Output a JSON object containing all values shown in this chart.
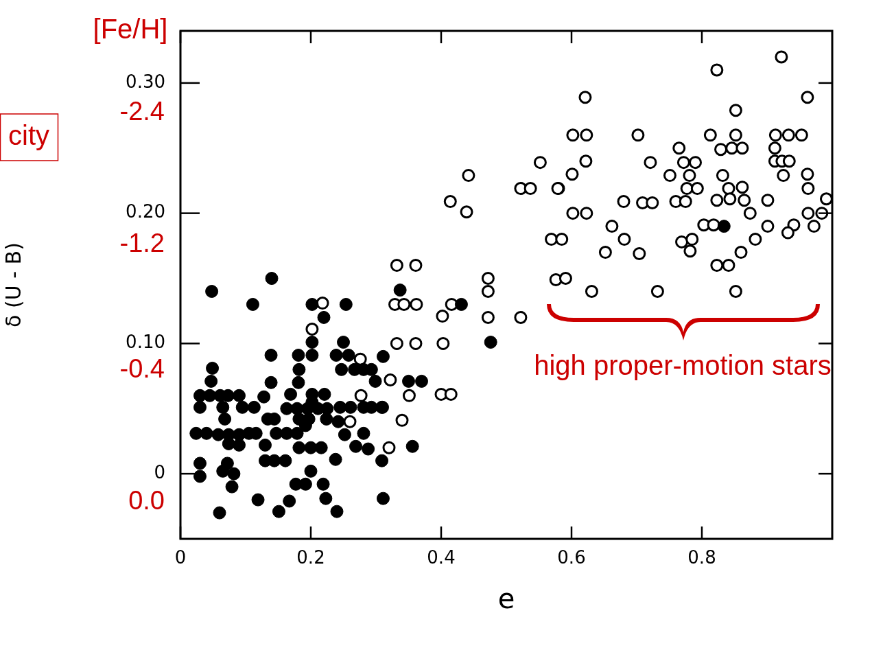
{
  "chart_data": {
    "type": "scatter",
    "xlabel": "e",
    "ylabel": "δ (U - B)",
    "xlim": [
      0,
      1.0
    ],
    "xticks": [
      0,
      0.2,
      0.4,
      0.6,
      0.8
    ],
    "ylim": [
      -0.05,
      0.34
    ],
    "yticks": [
      {
        "value": 0,
        "label": "0"
      },
      {
        "value": 0.1,
        "label": "0.10"
      },
      {
        "value": 0.2,
        "label": "0.20"
      },
      {
        "value": 0.3,
        "label": "0.30"
      }
    ],
    "grid": false,
    "legend": false,
    "marker": "circle",
    "annotations": [
      "[Fe/H]",
      "-2.4",
      "-1.2",
      "-0.4",
      "0.0",
      "city",
      "high proper-motion stars"
    ],
    "series": [
      {
        "color": "#000000",
        "x": [
          0.048,
          0.14,
          0.111,
          0.202,
          0.254,
          0.22,
          0.202,
          0.202,
          0.25,
          0.181,
          0.139,
          0.239,
          0.258,
          0.182,
          0.247,
          0.267,
          0.281,
          0.293,
          0.049,
          0.047,
          0.139,
          0.181,
          0.169,
          0.128,
          0.03,
          0.045,
          0.061,
          0.073,
          0.09,
          0.202,
          0.221,
          0.03,
          0.065,
          0.095,
          0.113,
          0.163,
          0.179,
          0.195,
          0.211,
          0.225,
          0.202,
          0.245,
          0.261,
          0.281,
          0.293,
          0.309,
          0.182,
          0.197,
          0.224,
          0.242,
          0.134,
          0.144,
          0.068,
          0.024,
          0.04,
          0.058,
          0.074,
          0.09,
          0.105,
          0.116,
          0.074,
          0.09,
          0.147,
          0.163,
          0.179,
          0.192,
          0.252,
          0.281,
          0.13,
          0.182,
          0.2,
          0.216,
          0.269,
          0.288,
          0.13,
          0.144,
          0.161,
          0.238,
          0.309,
          0.03,
          0.03,
          0.072,
          0.065,
          0.082,
          0.079,
          0.2,
          0.177,
          0.192,
          0.219,
          0.119,
          0.167,
          0.223,
          0.311,
          0.06,
          0.151,
          0.24,
          0.337,
          0.431,
          0.476,
          0.311,
          0.299,
          0.35,
          0.37,
          0.31,
          0.356,
          0.834
        ],
        "values": [
          0.14,
          0.15,
          0.13,
          0.13,
          0.13,
          0.12,
          0.101,
          0.091,
          0.101,
          0.091,
          0.091,
          0.091,
          0.091,
          0.08,
          0.08,
          0.08,
          0.08,
          0.08,
          0.081,
          0.071,
          0.07,
          0.07,
          0.061,
          0.059,
          0.06,
          0.06,
          0.06,
          0.06,
          0.06,
          0.061,
          0.061,
          0.051,
          0.051,
          0.051,
          0.051,
          0.05,
          0.05,
          0.05,
          0.05,
          0.05,
          0.055,
          0.051,
          0.051,
          0.051,
          0.051,
          0.051,
          0.042,
          0.042,
          0.042,
          0.04,
          0.042,
          0.042,
          0.042,
          0.031,
          0.031,
          0.03,
          0.03,
          0.03,
          0.031,
          0.031,
          0.023,
          0.022,
          0.031,
          0.031,
          0.031,
          0.037,
          0.03,
          0.031,
          0.022,
          0.02,
          0.02,
          0.02,
          0.021,
          0.019,
          0.01,
          0.01,
          0.01,
          0.011,
          0.01,
          0.008,
          -0.002,
          0.008,
          0.002,
          0.0,
          -0.01,
          0.002,
          -0.008,
          -0.008,
          -0.008,
          -0.02,
          -0.021,
          -0.019,
          -0.019,
          -0.03,
          -0.029,
          -0.029,
          0.141,
          0.13,
          0.101,
          0.09,
          0.071,
          0.071,
          0.071,
          0.051,
          0.021,
          0.19
        ]
      },
      {
        "color": "#000000",
        "x": [
          0.922,
          0.823,
          0.621,
          0.962,
          0.852,
          0.602,
          0.623,
          0.702,
          0.813,
          0.852,
          0.913,
          0.933,
          0.953,
          0.765,
          0.829,
          0.846,
          0.862,
          0.912,
          0.552,
          0.622,
          0.721,
          0.772,
          0.79,
          0.912,
          0.923,
          0.934,
          0.601,
          0.751,
          0.781,
          0.832,
          0.925,
          0.962,
          0.58,
          0.777,
          0.793,
          0.841,
          0.862,
          0.963,
          0.68,
          0.709,
          0.724,
          0.76,
          0.775,
          0.823,
          0.843,
          0.865,
          0.901,
          0.991,
          0.874,
          0.963,
          0.984,
          0.602,
          0.623,
          0.662,
          0.803,
          0.818,
          0.901,
          0.941,
          0.932,
          0.972,
          0.569,
          0.585,
          0.681,
          0.769,
          0.785,
          0.882,
          0.652,
          0.704,
          0.782,
          0.86,
          0.823,
          0.841,
          0.576,
          0.591,
          0.631,
          0.732,
          0.852,
          0.442,
          0.522,
          0.537,
          0.579,
          0.414,
          0.439,
          0.332,
          0.361,
          0.472,
          0.472,
          0.329,
          0.343,
          0.362,
          0.416,
          0.402,
          0.472,
          0.522,
          0.332,
          0.361,
          0.403,
          0.322,
          0.351,
          0.4,
          0.415,
          0.34,
          0.32,
          0.218,
          0.202,
          0.276,
          0.277,
          0.26
        ],
        "values": [
          0.32,
          0.31,
          0.289,
          0.289,
          0.279,
          0.26,
          0.26,
          0.26,
          0.26,
          0.26,
          0.26,
          0.26,
          0.26,
          0.25,
          0.249,
          0.25,
          0.25,
          0.25,
          0.239,
          0.24,
          0.239,
          0.239,
          0.239,
          0.24,
          0.24,
          0.24,
          0.23,
          0.229,
          0.229,
          0.229,
          0.229,
          0.23,
          0.219,
          0.219,
          0.219,
          0.219,
          0.22,
          0.219,
          0.209,
          0.208,
          0.208,
          0.209,
          0.209,
          0.21,
          0.211,
          0.21,
          0.21,
          0.211,
          0.2,
          0.2,
          0.2,
          0.2,
          0.2,
          0.19,
          0.191,
          0.191,
          0.19,
          0.191,
          0.185,
          0.19,
          0.18,
          0.18,
          0.18,
          0.178,
          0.18,
          0.18,
          0.17,
          0.169,
          0.171,
          0.17,
          0.16,
          0.16,
          0.149,
          0.15,
          0.14,
          0.14,
          0.14,
          0.229,
          0.219,
          0.219,
          0.219,
          0.209,
          0.201,
          0.16,
          0.16,
          0.15,
          0.14,
          0.13,
          0.13,
          0.13,
          0.13,
          0.121,
          0.12,
          0.12,
          0.1,
          0.1,
          0.1,
          0.072,
          0.06,
          0.061,
          0.061,
          0.041,
          0.02,
          0.131,
          0.111,
          0.088,
          0.06,
          0.04
        ]
      }
    ]
  }
}
